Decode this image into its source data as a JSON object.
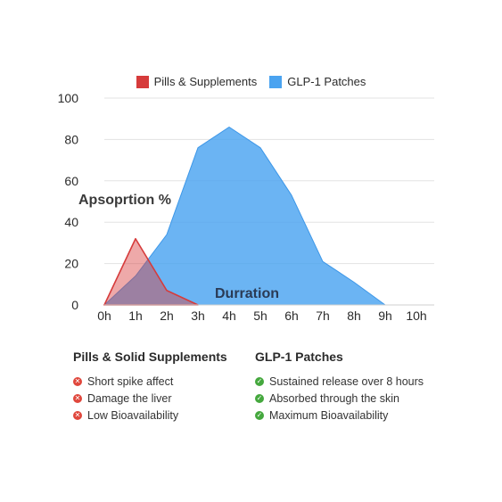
{
  "chart_data": {
    "type": "area",
    "x": [
      "0h",
      "1h",
      "2h",
      "3h",
      "4h",
      "5h",
      "6h",
      "7h",
      "8h",
      "9h",
      "10h"
    ],
    "series": [
      {
        "name": "Pills & Supplements",
        "color": "#d94040",
        "values": [
          0,
          32,
          7,
          0,
          null,
          null,
          null,
          null,
          null,
          null,
          null
        ]
      },
      {
        "name": "GLP-1 Patches",
        "color": "#4aa3f0",
        "values": [
          0,
          14,
          34,
          76,
          86,
          76,
          53,
          21,
          11,
          0,
          0
        ]
      }
    ],
    "ylim": [
      0,
      100
    ],
    "yticks": [
      0,
      20,
      40,
      60,
      80,
      100
    ],
    "grid": true,
    "legend": "top-center",
    "annotations": [
      "Apsoprtion %",
      "Durration"
    ]
  },
  "legend": {
    "pills_label": "Pills & Supplements",
    "patch_label": "GLP-1 Patches"
  },
  "benefits": {
    "pills_title": "Pills & Solid Supplements",
    "pills_items": [
      "Short spike affect",
      "Damage the liver",
      "Low Bioavailability"
    ],
    "patch_title": "GLP-1 Patches",
    "patch_items": [
      "Sustained release over 8 hours",
      "Absorbed through the skin",
      "Maximum Bioavailability"
    ]
  },
  "icons": {
    "negative": "x-circle-icon",
    "positive": "check-circle-icon"
  }
}
